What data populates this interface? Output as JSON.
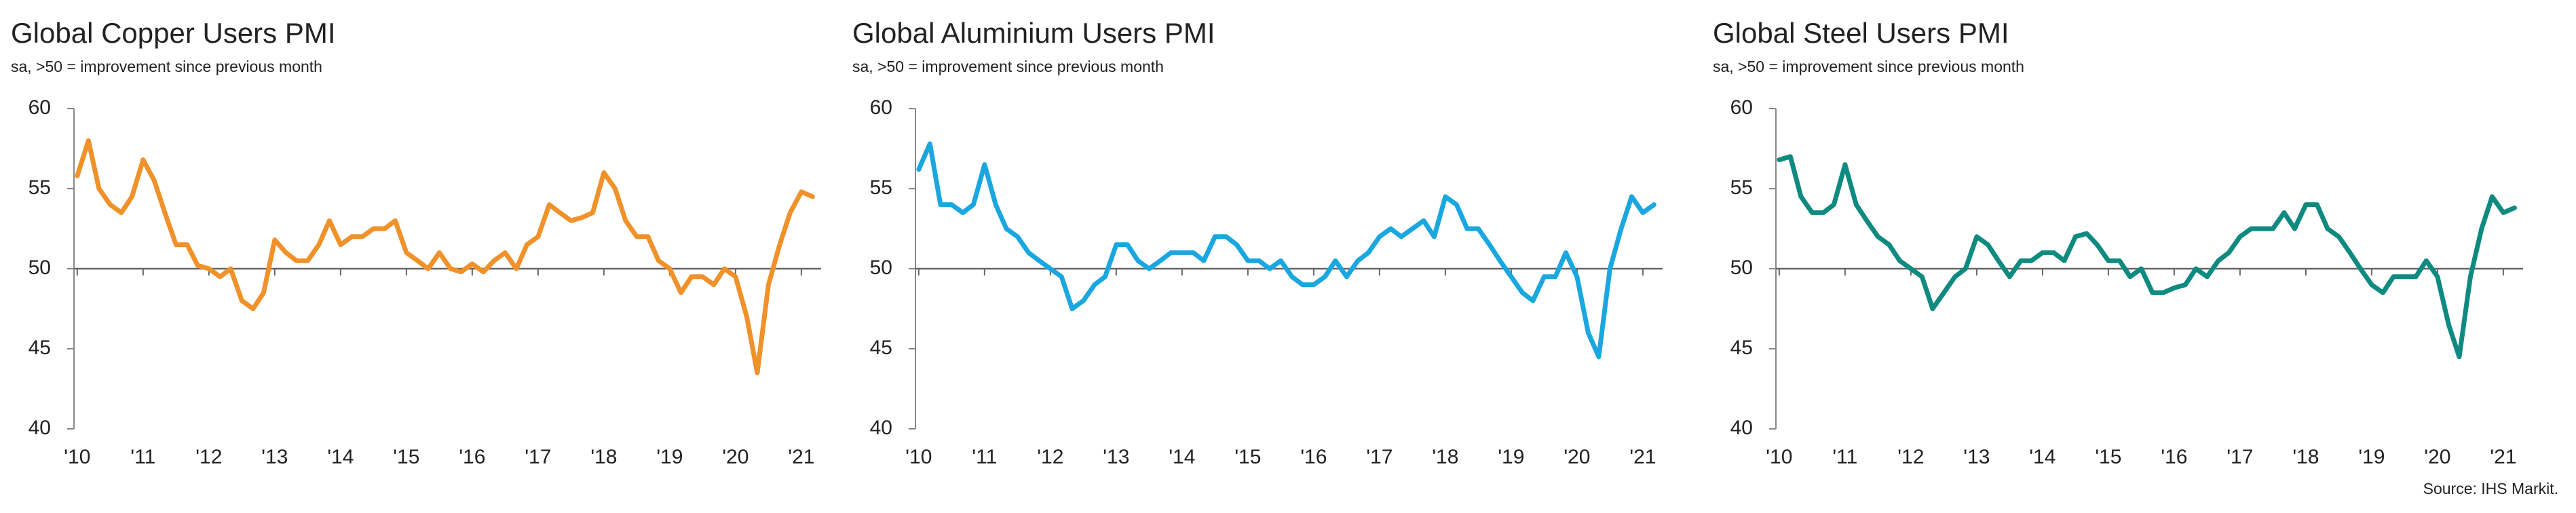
{
  "chart_data": [
    {
      "type": "line",
      "title": "Global Copper Users PMI",
      "subtitle": "sa, >50 = improvement since previous month",
      "color": "#f0912a",
      "x": [
        2010,
        2010.17,
        2010.33,
        2010.5,
        2010.67,
        2010.83,
        2011,
        2011.17,
        2011.33,
        2011.5,
        2011.67,
        2011.83,
        2012,
        2012.17,
        2012.33,
        2012.5,
        2012.67,
        2012.83,
        2013,
        2013.17,
        2013.33,
        2013.5,
        2013.67,
        2013.83,
        2014,
        2014.17,
        2014.33,
        2014.5,
        2014.67,
        2014.83,
        2015,
        2015.17,
        2015.33,
        2015.5,
        2015.67,
        2015.83,
        2016,
        2016.17,
        2016.33,
        2016.5,
        2016.67,
        2016.83,
        2017,
        2017.17,
        2017.33,
        2017.5,
        2017.67,
        2017.83,
        2018,
        2018.17,
        2018.33,
        2018.5,
        2018.67,
        2018.83,
        2019,
        2019.17,
        2019.33,
        2019.5,
        2019.67,
        2019.83,
        2020,
        2020.17,
        2020.33,
        2020.5,
        2020.67,
        2020.83,
        2021,
        2021.17
      ],
      "values": [
        55.8,
        58,
        55,
        54,
        53.5,
        54.5,
        56.8,
        55.5,
        53.5,
        51.5,
        51.5,
        50.2,
        50,
        49.5,
        50,
        48,
        47.5,
        48.5,
        51.8,
        51,
        50.5,
        50.5,
        51.5,
        53,
        51.5,
        52,
        52,
        52.5,
        52.5,
        53,
        51,
        50.5,
        50,
        51,
        50,
        49.8,
        50.3,
        49.8,
        50.5,
        51,
        50,
        51.5,
        52,
        54,
        53.5,
        53,
        53.2,
        53.5,
        56,
        55,
        53,
        52,
        52,
        50.5,
        50,
        48.5,
        49.5,
        49.5,
        49,
        50,
        49.5,
        47,
        43.5,
        49,
        51.5,
        53.5,
        54.8,
        54.5
      ],
      "xlim": [
        2009.95,
        2021.3
      ],
      "ylim": [
        40,
        60
      ],
      "yticks": [
        40,
        45,
        50,
        55,
        60
      ],
      "xticks": [
        {
          "value": 2010,
          "label": "'10"
        },
        {
          "value": 2011,
          "label": "'11"
        },
        {
          "value": 2012,
          "label": "'12"
        },
        {
          "value": 2013,
          "label": "'13"
        },
        {
          "value": 2014,
          "label": "'14"
        },
        {
          "value": 2015,
          "label": "'15"
        },
        {
          "value": 2016,
          "label": "'16"
        },
        {
          "value": 2017,
          "label": "'17"
        },
        {
          "value": 2018,
          "label": "'18"
        },
        {
          "value": 2019,
          "label": "'19"
        },
        {
          "value": 2020,
          "label": "'20"
        },
        {
          "value": 2021,
          "label": "'21"
        }
      ],
      "reference_line": 50
    },
    {
      "type": "line",
      "title": "Global Aluminium Users PMI",
      "subtitle": "sa, >50 = improvement since previous month",
      "color": "#1aa7e0",
      "x": [
        2010,
        2010.17,
        2010.33,
        2010.5,
        2010.67,
        2010.83,
        2011,
        2011.17,
        2011.33,
        2011.5,
        2011.67,
        2011.83,
        2012,
        2012.17,
        2012.33,
        2012.5,
        2012.67,
        2012.83,
        2013,
        2013.17,
        2013.33,
        2013.5,
        2013.67,
        2013.83,
        2014,
        2014.17,
        2014.33,
        2014.5,
        2014.67,
        2014.83,
        2015,
        2015.17,
        2015.33,
        2015.5,
        2015.67,
        2015.83,
        2016,
        2016.17,
        2016.33,
        2016.5,
        2016.67,
        2016.83,
        2017,
        2017.17,
        2017.33,
        2017.5,
        2017.67,
        2017.83,
        2018,
        2018.17,
        2018.33,
        2018.5,
        2018.67,
        2018.83,
        2019,
        2019.17,
        2019.33,
        2019.5,
        2019.67,
        2019.83,
        2020,
        2020.17,
        2020.33,
        2020.5,
        2020.67,
        2020.83,
        2021,
        2021.17
      ],
      "values": [
        56.2,
        57.8,
        54,
        54,
        53.5,
        54,
        56.5,
        54,
        52.5,
        52,
        51,
        50.5,
        50,
        49.5,
        47.5,
        48,
        49,
        49.5,
        51.5,
        51.5,
        50.5,
        50,
        50.5,
        51,
        51,
        51,
        50.5,
        52,
        52,
        51.5,
        50.5,
        50.5,
        50,
        50.5,
        49.5,
        49,
        49,
        49.5,
        50.5,
        49.5,
        50.5,
        51,
        52,
        52.5,
        52,
        52.5,
        53,
        52,
        54.5,
        54,
        52.5,
        52.5,
        51.5,
        50.5,
        49.5,
        48.5,
        48,
        49.5,
        49.5,
        51,
        49.5,
        46,
        44.5,
        50,
        52.5,
        54.5,
        53.5,
        54
      ],
      "xlim": [
        2009.95,
        2021.3
      ],
      "ylim": [
        40,
        60
      ],
      "yticks": [
        40,
        45,
        50,
        55,
        60
      ],
      "xticks": [
        {
          "value": 2010,
          "label": "'10"
        },
        {
          "value": 2011,
          "label": "'11"
        },
        {
          "value": 2012,
          "label": "'12"
        },
        {
          "value": 2013,
          "label": "'13"
        },
        {
          "value": 2014,
          "label": "'14"
        },
        {
          "value": 2015,
          "label": "'15"
        },
        {
          "value": 2016,
          "label": "'16"
        },
        {
          "value": 2017,
          "label": "'17"
        },
        {
          "value": 2018,
          "label": "'18"
        },
        {
          "value": 2019,
          "label": "'19"
        },
        {
          "value": 2020,
          "label": "'20"
        },
        {
          "value": 2021,
          "label": "'21"
        }
      ],
      "reference_line": 50
    },
    {
      "type": "line",
      "title": "Global Steel Users PMI",
      "subtitle": "sa, >50 = improvement since previous month",
      "color": "#0f8a80",
      "x": [
        2010,
        2010.17,
        2010.33,
        2010.5,
        2010.67,
        2010.83,
        2011,
        2011.17,
        2011.33,
        2011.5,
        2011.67,
        2011.83,
        2012,
        2012.17,
        2012.33,
        2012.5,
        2012.67,
        2012.83,
        2013,
        2013.17,
        2013.33,
        2013.5,
        2013.67,
        2013.83,
        2014,
        2014.17,
        2014.33,
        2014.5,
        2014.67,
        2014.83,
        2015,
        2015.17,
        2015.33,
        2015.5,
        2015.67,
        2015.83,
        2016,
        2016.17,
        2016.33,
        2016.5,
        2016.67,
        2016.83,
        2017,
        2017.17,
        2017.33,
        2017.5,
        2017.67,
        2017.83,
        2018,
        2018.17,
        2018.33,
        2018.5,
        2018.67,
        2018.83,
        2019,
        2019.17,
        2019.33,
        2019.5,
        2019.67,
        2019.83,
        2020,
        2020.17,
        2020.33,
        2020.5,
        2020.67,
        2020.83,
        2021,
        2021.17
      ],
      "values": [
        56.8,
        57,
        54.5,
        53.5,
        53.5,
        54,
        56.5,
        54,
        53,
        52,
        51.5,
        50.5,
        50,
        49.5,
        47.5,
        48.5,
        49.5,
        50,
        52,
        51.5,
        50.5,
        49.5,
        50.5,
        50.5,
        51,
        51,
        50.5,
        52,
        52.2,
        51.5,
        50.5,
        50.5,
        49.5,
        50,
        48.5,
        48.5,
        48.8,
        49,
        50,
        49.5,
        50.5,
        51,
        52,
        52.5,
        52.5,
        52.5,
        53.5,
        52.5,
        54,
        54,
        52.5,
        52,
        51,
        50,
        49,
        48.5,
        49.5,
        49.5,
        49.5,
        50.5,
        49.5,
        46.5,
        44.5,
        49.5,
        52.5,
        54.5,
        53.5,
        53.8
      ],
      "xlim": [
        2009.95,
        2021.3
      ],
      "ylim": [
        40,
        60
      ],
      "yticks": [
        40,
        45,
        50,
        55,
        60
      ],
      "xticks": [
        {
          "value": 2010,
          "label": "'10"
        },
        {
          "value": 2011,
          "label": "'11"
        },
        {
          "value": 2012,
          "label": "'12"
        },
        {
          "value": 2013,
          "label": "'13"
        },
        {
          "value": 2014,
          "label": "'14"
        },
        {
          "value": 2015,
          "label": "'15"
        },
        {
          "value": 2016,
          "label": "'16"
        },
        {
          "value": 2017,
          "label": "'17"
        },
        {
          "value": 2018,
          "label": "'18"
        },
        {
          "value": 2019,
          "label": "'19"
        },
        {
          "value": 2020,
          "label": "'20"
        },
        {
          "value": 2021,
          "label": "'21"
        }
      ],
      "reference_line": 50
    }
  ],
  "source": "Source: IHS Markit."
}
